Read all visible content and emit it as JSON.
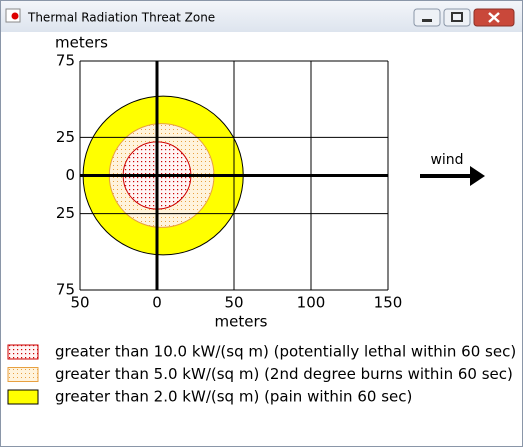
{
  "window": {
    "title": "Thermal Radiation Threat Zone"
  },
  "chart_data": {
    "type": "threat-zone",
    "y_label": "meters",
    "x_label": "meters",
    "wind_label": "wind",
    "xlim": [
      -50,
      150
    ],
    "ylim": [
      -75,
      75
    ],
    "xticks": [
      {
        "value": -50,
        "label": "50"
      },
      0,
      50,
      100,
      150
    ],
    "yticks": [
      {
        "value": -75,
        "label": "75"
      },
      {
        "value": -25,
        "label": "25"
      },
      0,
      25,
      75
    ],
    "grid": true,
    "series": [
      {
        "name": "greater than 10.0 kW/(sq m) (potentially lethal within 60 sec)",
        "color": "#cc0000",
        "center_x": 0,
        "radius": 22
      },
      {
        "name": "greater than 5.0 kW/(sq m) (2nd degree burns within 60 sec)",
        "color": "#e8a040",
        "center_x": 3,
        "radius": 34
      },
      {
        "name": "greater than 2.0 kW/(sq m) (pain within 60 sec)",
        "color": "#ffff00",
        "center_x": 4,
        "radius": 52
      }
    ]
  }
}
